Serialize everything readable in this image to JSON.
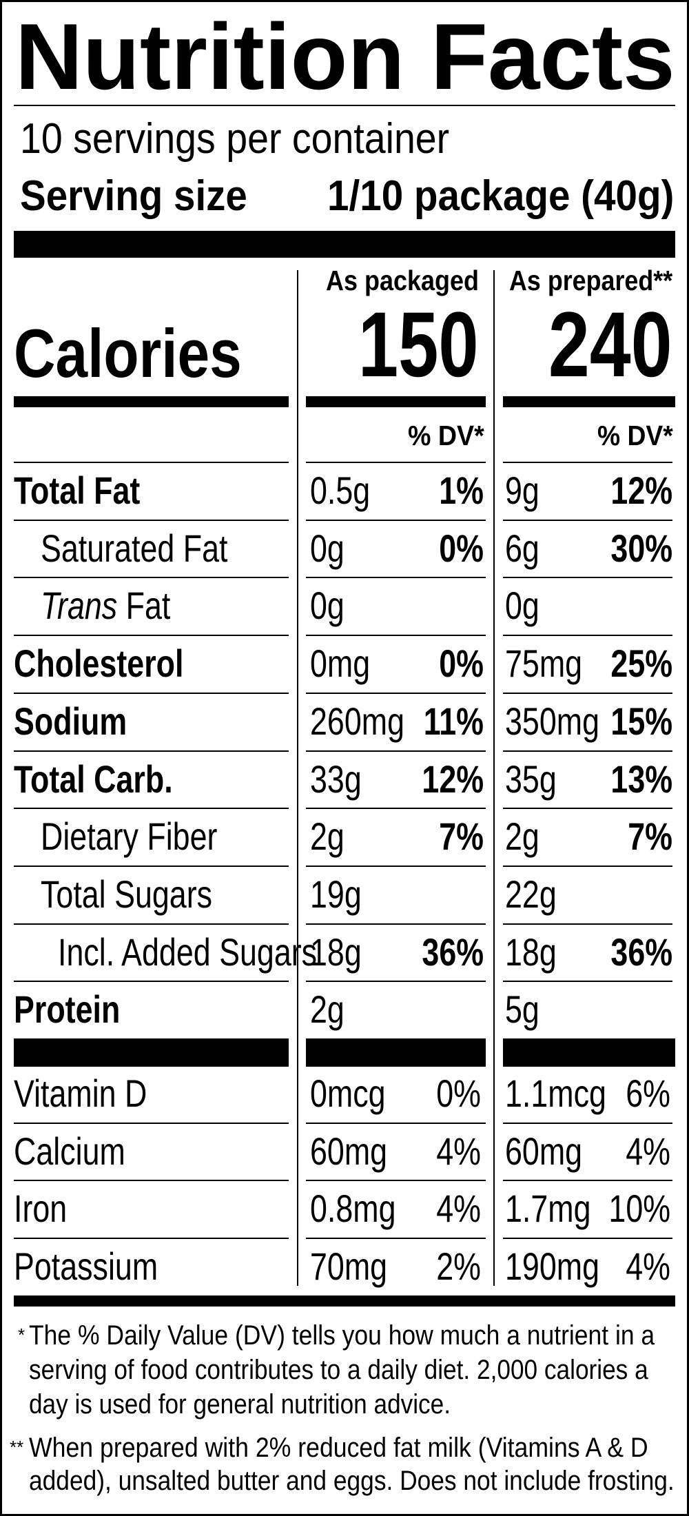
{
  "title": "Nutrition Facts",
  "servings_per_container": "10 servings per container",
  "serving_size": {
    "label": "Serving size",
    "value": "1/10 package (40g)"
  },
  "columns": [
    {
      "heading": "As packaged",
      "calories": "150",
      "dv_heading": "% DV*"
    },
    {
      "heading": "As prepared**",
      "calories": "240",
      "dv_heading": "% DV*"
    }
  ],
  "calories_label": "Calories",
  "nutrients": [
    {
      "label": "Total Fat",
      "level": "main",
      "packaged": {
        "amount": "0.5g",
        "dv": "1%"
      },
      "prepared": {
        "amount": "9g",
        "dv": "12%"
      }
    },
    {
      "label": "Saturated Fat",
      "level": "sub",
      "packaged": {
        "amount": "0g",
        "dv": "0%"
      },
      "prepared": {
        "amount": "6g",
        "dv": "30%"
      }
    },
    {
      "label_italic": "Trans",
      "label": "Fat",
      "level": "sub",
      "packaged": {
        "amount": "0g",
        "dv": ""
      },
      "prepared": {
        "amount": "0g",
        "dv": ""
      }
    },
    {
      "label": "Cholesterol",
      "level": "main",
      "packaged": {
        "amount": "0mg",
        "dv": "0%"
      },
      "prepared": {
        "amount": "75mg",
        "dv": "25%"
      }
    },
    {
      "label": "Sodium",
      "level": "main",
      "packaged": {
        "amount": "260mg",
        "dv": "11%"
      },
      "prepared": {
        "amount": "350mg",
        "dv": "15%"
      }
    },
    {
      "label": "Total Carb.",
      "level": "main",
      "packaged": {
        "amount": "33g",
        "dv": "12%"
      },
      "prepared": {
        "amount": "35g",
        "dv": "13%"
      }
    },
    {
      "label": "Dietary Fiber",
      "level": "sub",
      "packaged": {
        "amount": "2g",
        "dv": "7%"
      },
      "prepared": {
        "amount": "2g",
        "dv": "7%"
      }
    },
    {
      "label": "Total Sugars",
      "level": "sub",
      "packaged": {
        "amount": "19g",
        "dv": ""
      },
      "prepared": {
        "amount": "22g",
        "dv": ""
      }
    },
    {
      "label": "Incl. Added Sugars",
      "level": "subsub",
      "packaged": {
        "amount": "18g",
        "dv": "36%"
      },
      "prepared": {
        "amount": "18g",
        "dv": "36%"
      }
    },
    {
      "label": "Protein",
      "level": "main",
      "packaged": {
        "amount": "2g",
        "dv": ""
      },
      "prepared": {
        "amount": "5g",
        "dv": ""
      }
    }
  ],
  "vitamins": [
    {
      "label": "Vitamin D",
      "packaged": {
        "amount": "0mcg",
        "dv": "0%"
      },
      "prepared": {
        "amount": "1.1mcg",
        "dv": "6%"
      }
    },
    {
      "label": "Calcium",
      "packaged": {
        "amount": "60mg",
        "dv": "4%"
      },
      "prepared": {
        "amount": "60mg",
        "dv": "4%"
      }
    },
    {
      "label": "Iron",
      "packaged": {
        "amount": "0.8mg",
        "dv": "4%"
      },
      "prepared": {
        "amount": "1.7mg",
        "dv": "10%"
      }
    },
    {
      "label": "Potassium",
      "packaged": {
        "amount": "70mg",
        "dv": "2%"
      },
      "prepared": {
        "amount": "190mg",
        "dv": "4%"
      }
    }
  ],
  "footnotes": [
    {
      "marker": "*",
      "lines": [
        "The % Daily Value (DV) tells you how much a nutrient in a",
        "serving of food contributes to a daily diet. 2,000 calories a",
        "day is used for general nutrition advice."
      ]
    },
    {
      "marker": "**",
      "lines": [
        "When prepared with 2% reduced fat milk (Vitamins A & D",
        "added), unsalted butter and eggs. Does not include frosting."
      ]
    }
  ]
}
